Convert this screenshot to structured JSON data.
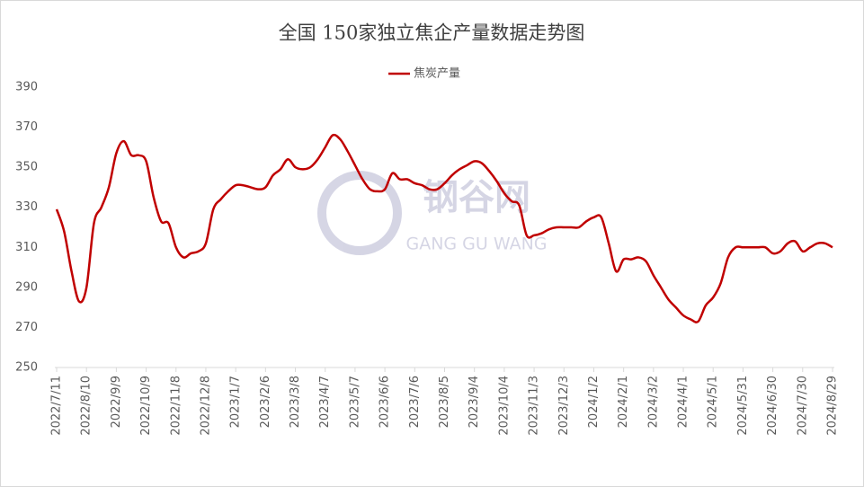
{
  "chart_data": {
    "type": "line",
    "title": "全国 150家独立焦企产量数据走势图",
    "watermark": {
      "name": "钢谷网",
      "subname": "GANG GU WANG"
    },
    "categories": [
      "2022/7/11",
      null,
      null,
      null,
      "2022/8/10",
      null,
      null,
      null,
      "2022/9/9",
      null,
      null,
      null,
      "2022/10/9",
      null,
      null,
      null,
      "2022/11/8",
      null,
      null,
      null,
      "2022/12/8",
      null,
      null,
      null,
      "2023/1/7",
      null,
      null,
      null,
      "2023/2/6",
      null,
      null,
      null,
      "2023/3/8",
      null,
      null,
      null,
      "2023/4/7",
      null,
      null,
      null,
      "2023/5/7",
      null,
      null,
      null,
      "2023/6/6",
      null,
      null,
      null,
      "2023/7/6",
      null,
      null,
      null,
      "2023/8/5",
      null,
      null,
      null,
      "2023/9/4",
      null,
      null,
      null,
      "2023/10/4",
      null,
      null,
      null,
      "2023/11/3",
      null,
      null,
      null,
      "2023/12/3",
      null,
      null,
      null,
      "2024/1/2",
      null,
      null,
      null,
      "2024/2/1",
      null,
      null,
      null,
      "2024/3/2",
      null,
      null,
      null,
      "2024/4/1",
      null,
      null,
      null,
      "2024/5/1",
      null,
      null,
      null,
      "2024/5/31",
      null,
      null,
      null,
      "2024/6/30",
      null,
      null,
      null,
      "2024/7/30",
      null,
      null,
      null,
      "2024/8/29"
    ],
    "series": [
      {
        "name": "焦炭产量",
        "color": "#c00000",
        "values": [
          329,
          318,
          298,
          283,
          290,
          322,
          330,
          340,
          357,
          363,
          356,
          356,
          353,
          335,
          323,
          322,
          310,
          305,
          307,
          308,
          312,
          329,
          334,
          338,
          341,
          341,
          340,
          339,
          340,
          346,
          349,
          354,
          350,
          349,
          350,
          354,
          360,
          366,
          364,
          358,
          351,
          344,
          339,
          338,
          339,
          347,
          344,
          344,
          342,
          341,
          339,
          339,
          342,
          346,
          349,
          351,
          353,
          352,
          348,
          343,
          337,
          333,
          331,
          316,
          316,
          317,
          319,
          320,
          320,
          320,
          320,
          323,
          325,
          325,
          312,
          298,
          304,
          304,
          305,
          303,
          296,
          290,
          284,
          280,
          276,
          274,
          273,
          281,
          285,
          292,
          305,
          310,
          310,
          310,
          310,
          310,
          307,
          308,
          312,
          313,
          308,
          310,
          312,
          312,
          310
        ]
      }
    ],
    "ylim": [
      250,
      390
    ],
    "yticks": [
      250,
      270,
      290,
      310,
      330,
      350,
      370,
      390
    ],
    "grid": false,
    "legend": "top"
  }
}
